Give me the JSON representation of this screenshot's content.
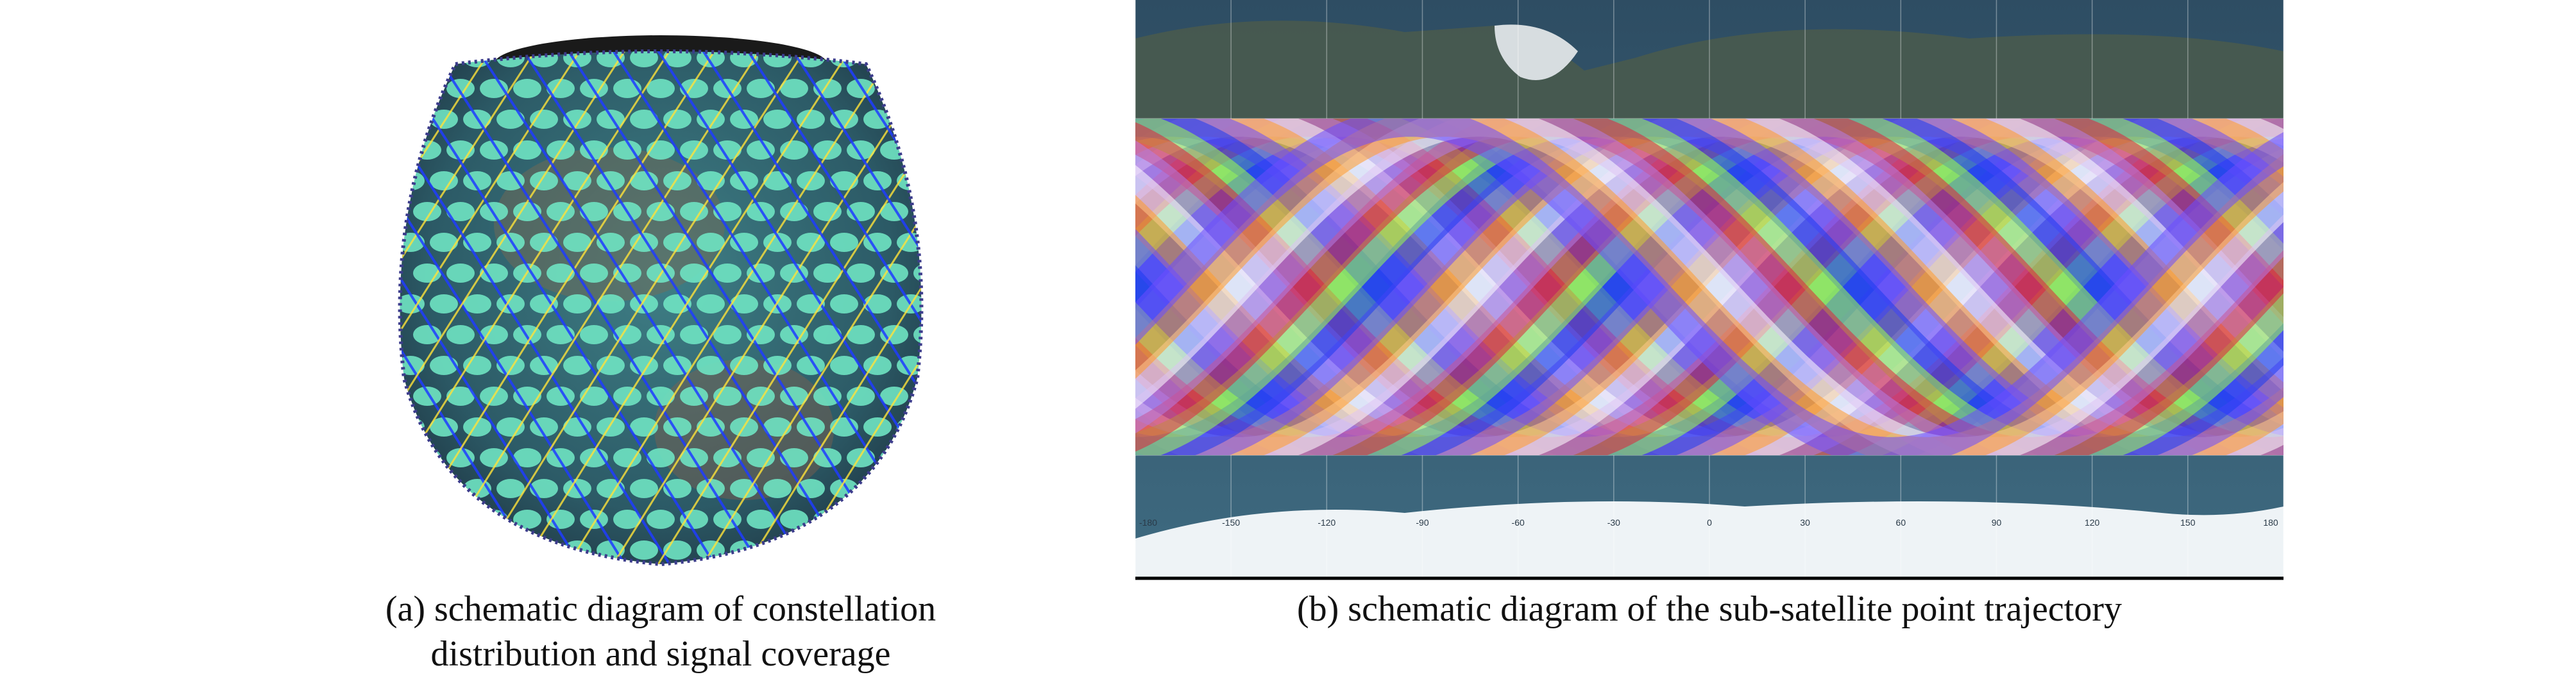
{
  "figure": {
    "panel_a": {
      "caption_line1": "(a) schematic diagram of constellation",
      "caption_line2": "distribution and signal coverage"
    },
    "panel_b": {
      "caption": "(b) schematic diagram of the sub-satellite point trajectory",
      "axis_ticks": [
        "-180",
        "-150",
        "-120",
        "-90",
        "-60",
        "-30",
        "0",
        "30",
        "60",
        "90",
        "120",
        "150",
        "180"
      ]
    }
  },
  "colors": {
    "coverage": "#6fe3c2",
    "orbit_blue": "#1f3cff",
    "orbit_yellow": "#ffe23a",
    "track_colors": [
      "#1b3cf0",
      "#9cff4a",
      "#e0233c",
      "#b47be6",
      "#ffffff",
      "#ff9a2a",
      "#6b4cff"
    ]
  }
}
